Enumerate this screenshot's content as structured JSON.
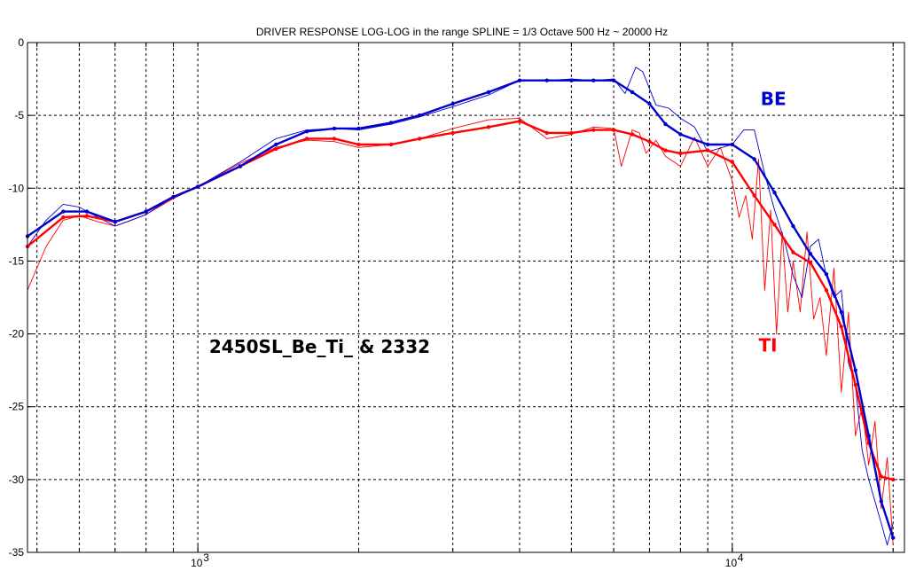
{
  "chart_data": {
    "type": "line",
    "title": "DRIVER RESPONSE LOG-LOG in the range SPLINE = 1/3 Octave 500 Hz ~ 20000 Hz",
    "xlabel": "",
    "ylabel": "",
    "x_scale": "log",
    "xlim": [
      480,
      21000
    ],
    "ylim": [
      -35,
      0
    ],
    "grid": true,
    "grid_style": "dashed",
    "colors": {
      "be": "#0000cc",
      "ti": "#ff0000",
      "grid": "#000000"
    },
    "y_ticks": [
      0,
      -5,
      -10,
      -15,
      -20,
      -25,
      -30,
      -35
    ],
    "y_tick_labels": [
      "0",
      "-5",
      "-10",
      "-15",
      "-20",
      "-25",
      "-30",
      "-35"
    ],
    "x_major_ticks": [
      1000,
      10000
    ],
    "x_major_tick_labels": [
      {
        "base": "10",
        "exp": "3"
      },
      {
        "base": "10",
        "exp": "4"
      }
    ],
    "x_minor_ticks": [
      500,
      600,
      700,
      800,
      900,
      2000,
      3000,
      4000,
      5000,
      6000,
      7000,
      8000,
      9000,
      20000
    ],
    "annotations": [
      {
        "text": "2450SL_Be_Ti_  & 2332",
        "color": "#000000",
        "x": 1050,
        "y": -21.3
      },
      {
        "text": "BE",
        "color": "#0000cc",
        "x": 11300,
        "y": -4.3
      },
      {
        "text": "TI",
        "color": "#ff0000",
        "x": 11200,
        "y": -21.2
      }
    ],
    "series": [
      {
        "id": "be-smooth",
        "color": "#0000cc",
        "style": "thick-markers",
        "x": [
          480,
          560,
          620,
          700,
          800,
          900,
          1000,
          1200,
          1400,
          1600,
          1800,
          2000,
          2300,
          2600,
          3000,
          3500,
          4000,
          4500,
          5000,
          5500,
          6000,
          6500,
          7000,
          7500,
          8000,
          9000,
          10000,
          11000,
          12000,
          13000,
          14000,
          15000,
          16000,
          17000,
          18000,
          19000,
          20000
        ],
        "y": [
          -13.3,
          -11.6,
          -11.6,
          -12.3,
          -11.6,
          -10.6,
          -9.9,
          -8.5,
          -7.0,
          -6.1,
          -5.9,
          -5.9,
          -5.5,
          -5.0,
          -4.2,
          -3.4,
          -2.6,
          -2.6,
          -2.6,
          -2.6,
          -2.6,
          -3.4,
          -4.2,
          -5.6,
          -6.3,
          -7.0,
          -7.0,
          -8.0,
          -10.3,
          -12.6,
          -14.5,
          -15.9,
          -18.5,
          -22.5,
          -27.0,
          -31.5,
          -34.0
        ]
      },
      {
        "id": "ti-smooth",
        "color": "#ff0000",
        "style": "thick-markers",
        "x": [
          480,
          560,
          620,
          700,
          800,
          900,
          1000,
          1200,
          1400,
          1600,
          1800,
          2000,
          2300,
          2600,
          3000,
          3500,
          4000,
          4500,
          5000,
          5500,
          6000,
          6500,
          7000,
          7500,
          8000,
          9000,
          10000,
          11000,
          12000,
          13000,
          14000,
          15000,
          16000,
          17000,
          18000,
          19000,
          20000
        ],
        "y": [
          -14.0,
          -12.0,
          -11.9,
          -12.3,
          -11.6,
          -10.6,
          -9.9,
          -8.5,
          -7.3,
          -6.6,
          -6.6,
          -7.0,
          -7.0,
          -6.6,
          -6.2,
          -5.8,
          -5.4,
          -6.2,
          -6.2,
          -6.0,
          -6.0,
          -6.3,
          -6.8,
          -7.4,
          -7.6,
          -7.4,
          -8.2,
          -10.5,
          -12.5,
          -14.4,
          -15.1,
          -17.0,
          -19.5,
          -23.5,
          -27.5,
          -29.8,
          -30.0
        ]
      },
      {
        "id": "be-raw",
        "color": "#0000cc",
        "style": "thin",
        "x": [
          480,
          520,
          560,
          600,
          650,
          700,
          750,
          800,
          900,
          1000,
          1200,
          1400,
          1600,
          1800,
          2000,
          2300,
          2600,
          3000,
          3500,
          4000,
          4500,
          5000,
          5500,
          6000,
          6300,
          6600,
          6800,
          7200,
          7600,
          8000,
          8500,
          9000,
          10000,
          10500,
          11000,
          11500,
          12000,
          12500,
          13000,
          13500,
          14000,
          14500,
          15000,
          15500,
          16000,
          16500,
          17000,
          17500,
          18000,
          18500,
          19000,
          19500,
          20000
        ],
        "y": [
          -14.0,
          -12.2,
          -11.1,
          -11.3,
          -12.0,
          -12.6,
          -12.2,
          -11.8,
          -10.6,
          -9.9,
          -8.2,
          -6.6,
          -6.0,
          -5.9,
          -6.0,
          -5.6,
          -5.1,
          -4.4,
          -3.6,
          -2.6,
          -2.6,
          -2.5,
          -2.6,
          -2.5,
          -3.5,
          -1.7,
          -2.0,
          -4.3,
          -4.5,
          -5.2,
          -5.8,
          -7.5,
          -7.0,
          -6.0,
          -6.0,
          -9.0,
          -11.5,
          -13.5,
          -16.0,
          -17.5,
          -14.0,
          -13.5,
          -16.0,
          -17.5,
          -17.0,
          -22.0,
          -23.5,
          -28.0,
          -30.0,
          -31.5,
          -33.0,
          -34.5,
          -33.0
        ]
      },
      {
        "id": "ti-raw",
        "color": "#ff0000",
        "style": "thin",
        "x": [
          480,
          520,
          560,
          600,
          650,
          700,
          750,
          800,
          900,
          1000,
          1200,
          1400,
          1600,
          1800,
          2000,
          2300,
          2600,
          3000,
          3500,
          4000,
          4500,
          5000,
          5500,
          6000,
          6200,
          6500,
          6700,
          6900,
          7200,
          7500,
          8000,
          8500,
          9000,
          9500,
          10000,
          10300,
          10600,
          10900,
          11200,
          11500,
          11800,
          12100,
          12400,
          12700,
          13000,
          13400,
          13800,
          14200,
          14600,
          15000,
          15500,
          16000,
          16500,
          17000,
          17500,
          18000,
          18500,
          19000,
          19500,
          20000
        ],
        "y": [
          -17.0,
          -14.0,
          -12.2,
          -11.9,
          -12.3,
          -12.6,
          -12.2,
          -11.8,
          -10.7,
          -9.9,
          -8.3,
          -7.2,
          -6.7,
          -6.8,
          -7.2,
          -7.0,
          -6.6,
          -5.9,
          -5.3,
          -5.2,
          -6.6,
          -6.3,
          -5.8,
          -5.9,
          -8.5,
          -6.0,
          -6.2,
          -7.6,
          -6.7,
          -7.8,
          -8.5,
          -6.5,
          -8.5,
          -7.2,
          -9.5,
          -12.0,
          -10.5,
          -13.5,
          -8.0,
          -17.0,
          -11.5,
          -20.0,
          -13.0,
          -18.5,
          -15.0,
          -18.5,
          -13.0,
          -19.0,
          -17.5,
          -21.5,
          -15.5,
          -24.0,
          -18.5,
          -27.0,
          -25.0,
          -29.0,
          -26.0,
          -32.0,
          -28.5,
          -34.5
        ]
      }
    ]
  }
}
